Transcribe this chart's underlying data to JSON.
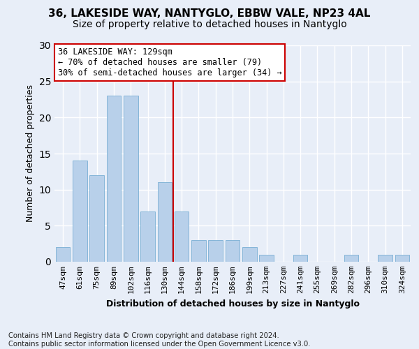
{
  "title1": "36, LAKESIDE WAY, NANTYGLO, EBBW VALE, NP23 4AL",
  "title2": "Size of property relative to detached houses in Nantyglo",
  "xlabel": "Distribution of detached houses by size in Nantyglo",
  "ylabel": "Number of detached properties",
  "footnote": "Contains HM Land Registry data © Crown copyright and database right 2024.\nContains public sector information licensed under the Open Government Licence v3.0.",
  "categories": [
    "47sqm",
    "61sqm",
    "75sqm",
    "89sqm",
    "102sqm",
    "116sqm",
    "130sqm",
    "144sqm",
    "158sqm",
    "172sqm",
    "186sqm",
    "199sqm",
    "213sqm",
    "227sqm",
    "241sqm",
    "255sqm",
    "269sqm",
    "282sqm",
    "296sqm",
    "310sqm",
    "324sqm"
  ],
  "values": [
    2,
    14,
    12,
    23,
    23,
    7,
    11,
    7,
    3,
    3,
    3,
    2,
    1,
    0,
    1,
    0,
    0,
    1,
    0,
    1,
    1
  ],
  "bar_color": "#b8d0ea",
  "bar_edge_color": "#7aafd4",
  "vline_x": 6.5,
  "vline_color": "#cc0000",
  "annotation_text": "36 LAKESIDE WAY: 129sqm\n← 70% of detached houses are smaller (79)\n30% of semi-detached houses are larger (34) →",
  "annotation_box_facecolor": "#ffffff",
  "annotation_box_edgecolor": "#cc0000",
  "bg_color": "#e8eef8",
  "plot_bg_color": "#e8eef8",
  "ylim": [
    0,
    30
  ],
  "yticks": [
    0,
    5,
    10,
    15,
    20,
    25,
    30
  ],
  "grid_color": "#ffffff",
  "title1_fontsize": 11,
  "title2_fontsize": 10,
  "xlabel_fontsize": 9,
  "ylabel_fontsize": 9,
  "annotation_fontsize": 8.5,
  "footnote_fontsize": 7.2,
  "tick_fontsize": 8
}
